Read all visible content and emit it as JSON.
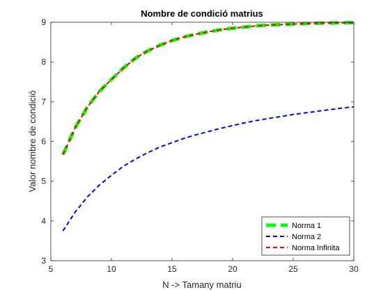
{
  "chart_data": {
    "type": "line",
    "title": "Nombre de condició matrius",
    "xlabel": "N -> Tamany matriu",
    "ylabel": "Valor nombre de condició",
    "xlim": [
      5,
      30
    ],
    "ylim": [
      3,
      9
    ],
    "xticks": [
      5,
      10,
      15,
      20,
      25,
      30
    ],
    "yticks": [
      3,
      4,
      5,
      6,
      7,
      8,
      9
    ],
    "box": true,
    "grid": false,
    "legend_position": "bottom-right",
    "series": [
      {
        "name": "Norma 1",
        "color": "#00ff00",
        "style": "dashed-thick",
        "x": [
          6,
          7,
          8,
          9,
          10,
          11,
          12,
          13,
          14,
          15,
          16,
          17,
          18,
          19,
          20,
          21,
          22,
          23,
          24,
          25,
          26,
          27,
          28,
          29,
          30
        ],
        "y": [
          5.67,
          6.34,
          6.86,
          7.26,
          7.56,
          7.85,
          8.1,
          8.28,
          8.42,
          8.54,
          8.63,
          8.7,
          8.76,
          8.81,
          8.85,
          8.88,
          8.91,
          8.93,
          8.94,
          8.955,
          8.965,
          8.975,
          8.98,
          8.985,
          8.99
        ]
      },
      {
        "name": "Norma 2",
        "color": "#0000ff",
        "style": "dashed",
        "x": [
          6,
          7,
          8,
          9,
          10,
          11,
          12,
          13,
          14,
          15,
          16,
          17,
          18,
          19,
          20,
          21,
          22,
          23,
          24,
          25,
          26,
          27,
          28,
          29,
          30
        ],
        "y": [
          3.75,
          4.22,
          4.6,
          4.9,
          5.15,
          5.38,
          5.56,
          5.72,
          5.86,
          5.97,
          6.08,
          6.17,
          6.25,
          6.33,
          6.4,
          6.47,
          6.53,
          6.58,
          6.63,
          6.68,
          6.72,
          6.76,
          6.8,
          6.84,
          6.87
        ]
      },
      {
        "name": "Norma Infinita",
        "color": "#ff0000",
        "style": "dashed",
        "x": [
          6,
          7,
          8,
          9,
          10,
          11,
          12,
          13,
          14,
          15,
          16,
          17,
          18,
          19,
          20,
          21,
          22,
          23,
          24,
          25,
          26,
          27,
          28,
          29,
          30
        ],
        "y": [
          5.67,
          6.34,
          6.86,
          7.26,
          7.56,
          7.85,
          8.1,
          8.28,
          8.42,
          8.54,
          8.63,
          8.7,
          8.76,
          8.81,
          8.85,
          8.88,
          8.91,
          8.93,
          8.94,
          8.955,
          8.965,
          8.975,
          8.98,
          8.985,
          8.99
        ]
      }
    ]
  }
}
